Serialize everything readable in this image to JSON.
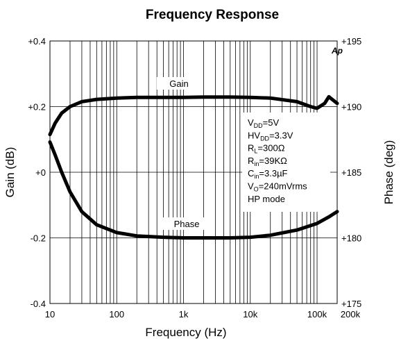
{
  "chart_data": {
    "type": "line",
    "title": "Frequency Response",
    "xlabel": "Frequency (Hz)",
    "ylabel_left": "Gain (dB)",
    "ylabel_right": "Phase (deg)",
    "x_scale": "log",
    "xlim": [
      10,
      200000
    ],
    "ylim_left": [
      -0.4,
      0.4
    ],
    "ylim_right": [
      175,
      195
    ],
    "grid": true,
    "x_ticks": [
      {
        "value": 10,
        "label": "10"
      },
      {
        "value": 100,
        "label": "100"
      },
      {
        "value": 1000,
        "label": "1k"
      },
      {
        "value": 10000,
        "label": "10k"
      },
      {
        "value": 100000,
        "label": "100k"
      },
      {
        "value": 200000,
        "label": "200k"
      }
    ],
    "y_ticks_left": [
      {
        "value": 0.4,
        "label": "+0.4"
      },
      {
        "value": 0.2,
        "label": "+0.2"
      },
      {
        "value": 0,
        "label": "+0"
      },
      {
        "value": -0.2,
        "label": "-0.2"
      },
      {
        "value": -0.4,
        "label": "-0.4"
      }
    ],
    "y_ticks_right": [
      {
        "value": 195,
        "label": "+195"
      },
      {
        "value": 190,
        "label": "+190"
      },
      {
        "value": 185,
        "label": "+185"
      },
      {
        "value": 180,
        "label": "+180"
      },
      {
        "value": 175,
        "label": "+175"
      }
    ],
    "series": [
      {
        "name": "Gain",
        "axis": "left",
        "x": [
          10,
          12,
          15,
          20,
          30,
          50,
          100,
          200,
          500,
          1000,
          2000,
          5000,
          10000,
          20000,
          50000,
          80000,
          100000,
          130000,
          150000,
          200000
        ],
        "y": [
          0.115,
          0.15,
          0.18,
          0.2,
          0.215,
          0.222,
          0.226,
          0.228,
          0.228,
          0.228,
          0.229,
          0.229,
          0.228,
          0.226,
          0.215,
          0.2,
          0.195,
          0.21,
          0.23,
          0.21
        ]
      },
      {
        "name": "Phase",
        "axis": "right",
        "x": [
          10,
          12,
          15,
          20,
          30,
          50,
          100,
          200,
          500,
          1000,
          2000,
          5000,
          10000,
          20000,
          50000,
          100000,
          150000,
          200000
        ],
        "y": [
          187.3,
          186.3,
          185.0,
          183.5,
          182.0,
          181.0,
          180.4,
          180.15,
          180.05,
          180.0,
          180.0,
          180.0,
          180.05,
          180.2,
          180.6,
          181.1,
          181.6,
          182.0
        ]
      }
    ],
    "annotations": [
      {
        "id": "gain",
        "text": "Gain"
      },
      {
        "id": "phase",
        "text": "Phase"
      },
      {
        "id": "ap_logo",
        "text": "Ap"
      }
    ],
    "conditions": [
      {
        "main": "V",
        "sub": "DD",
        "rest": "=5V"
      },
      {
        "main": "HV",
        "sub": "DD",
        "rest": "=3.3V"
      },
      {
        "main": "R",
        "sub": "L",
        "rest": "=300Ω"
      },
      {
        "main": "R",
        "sub": "in",
        "rest": "=39KΩ"
      },
      {
        "main": "C",
        "sub": "in",
        "rest": "=3.3µF"
      },
      {
        "main": "V",
        "sub": "O",
        "rest": "=240mVrms"
      },
      {
        "main": "HP mode",
        "sub": "",
        "rest": ""
      }
    ]
  }
}
